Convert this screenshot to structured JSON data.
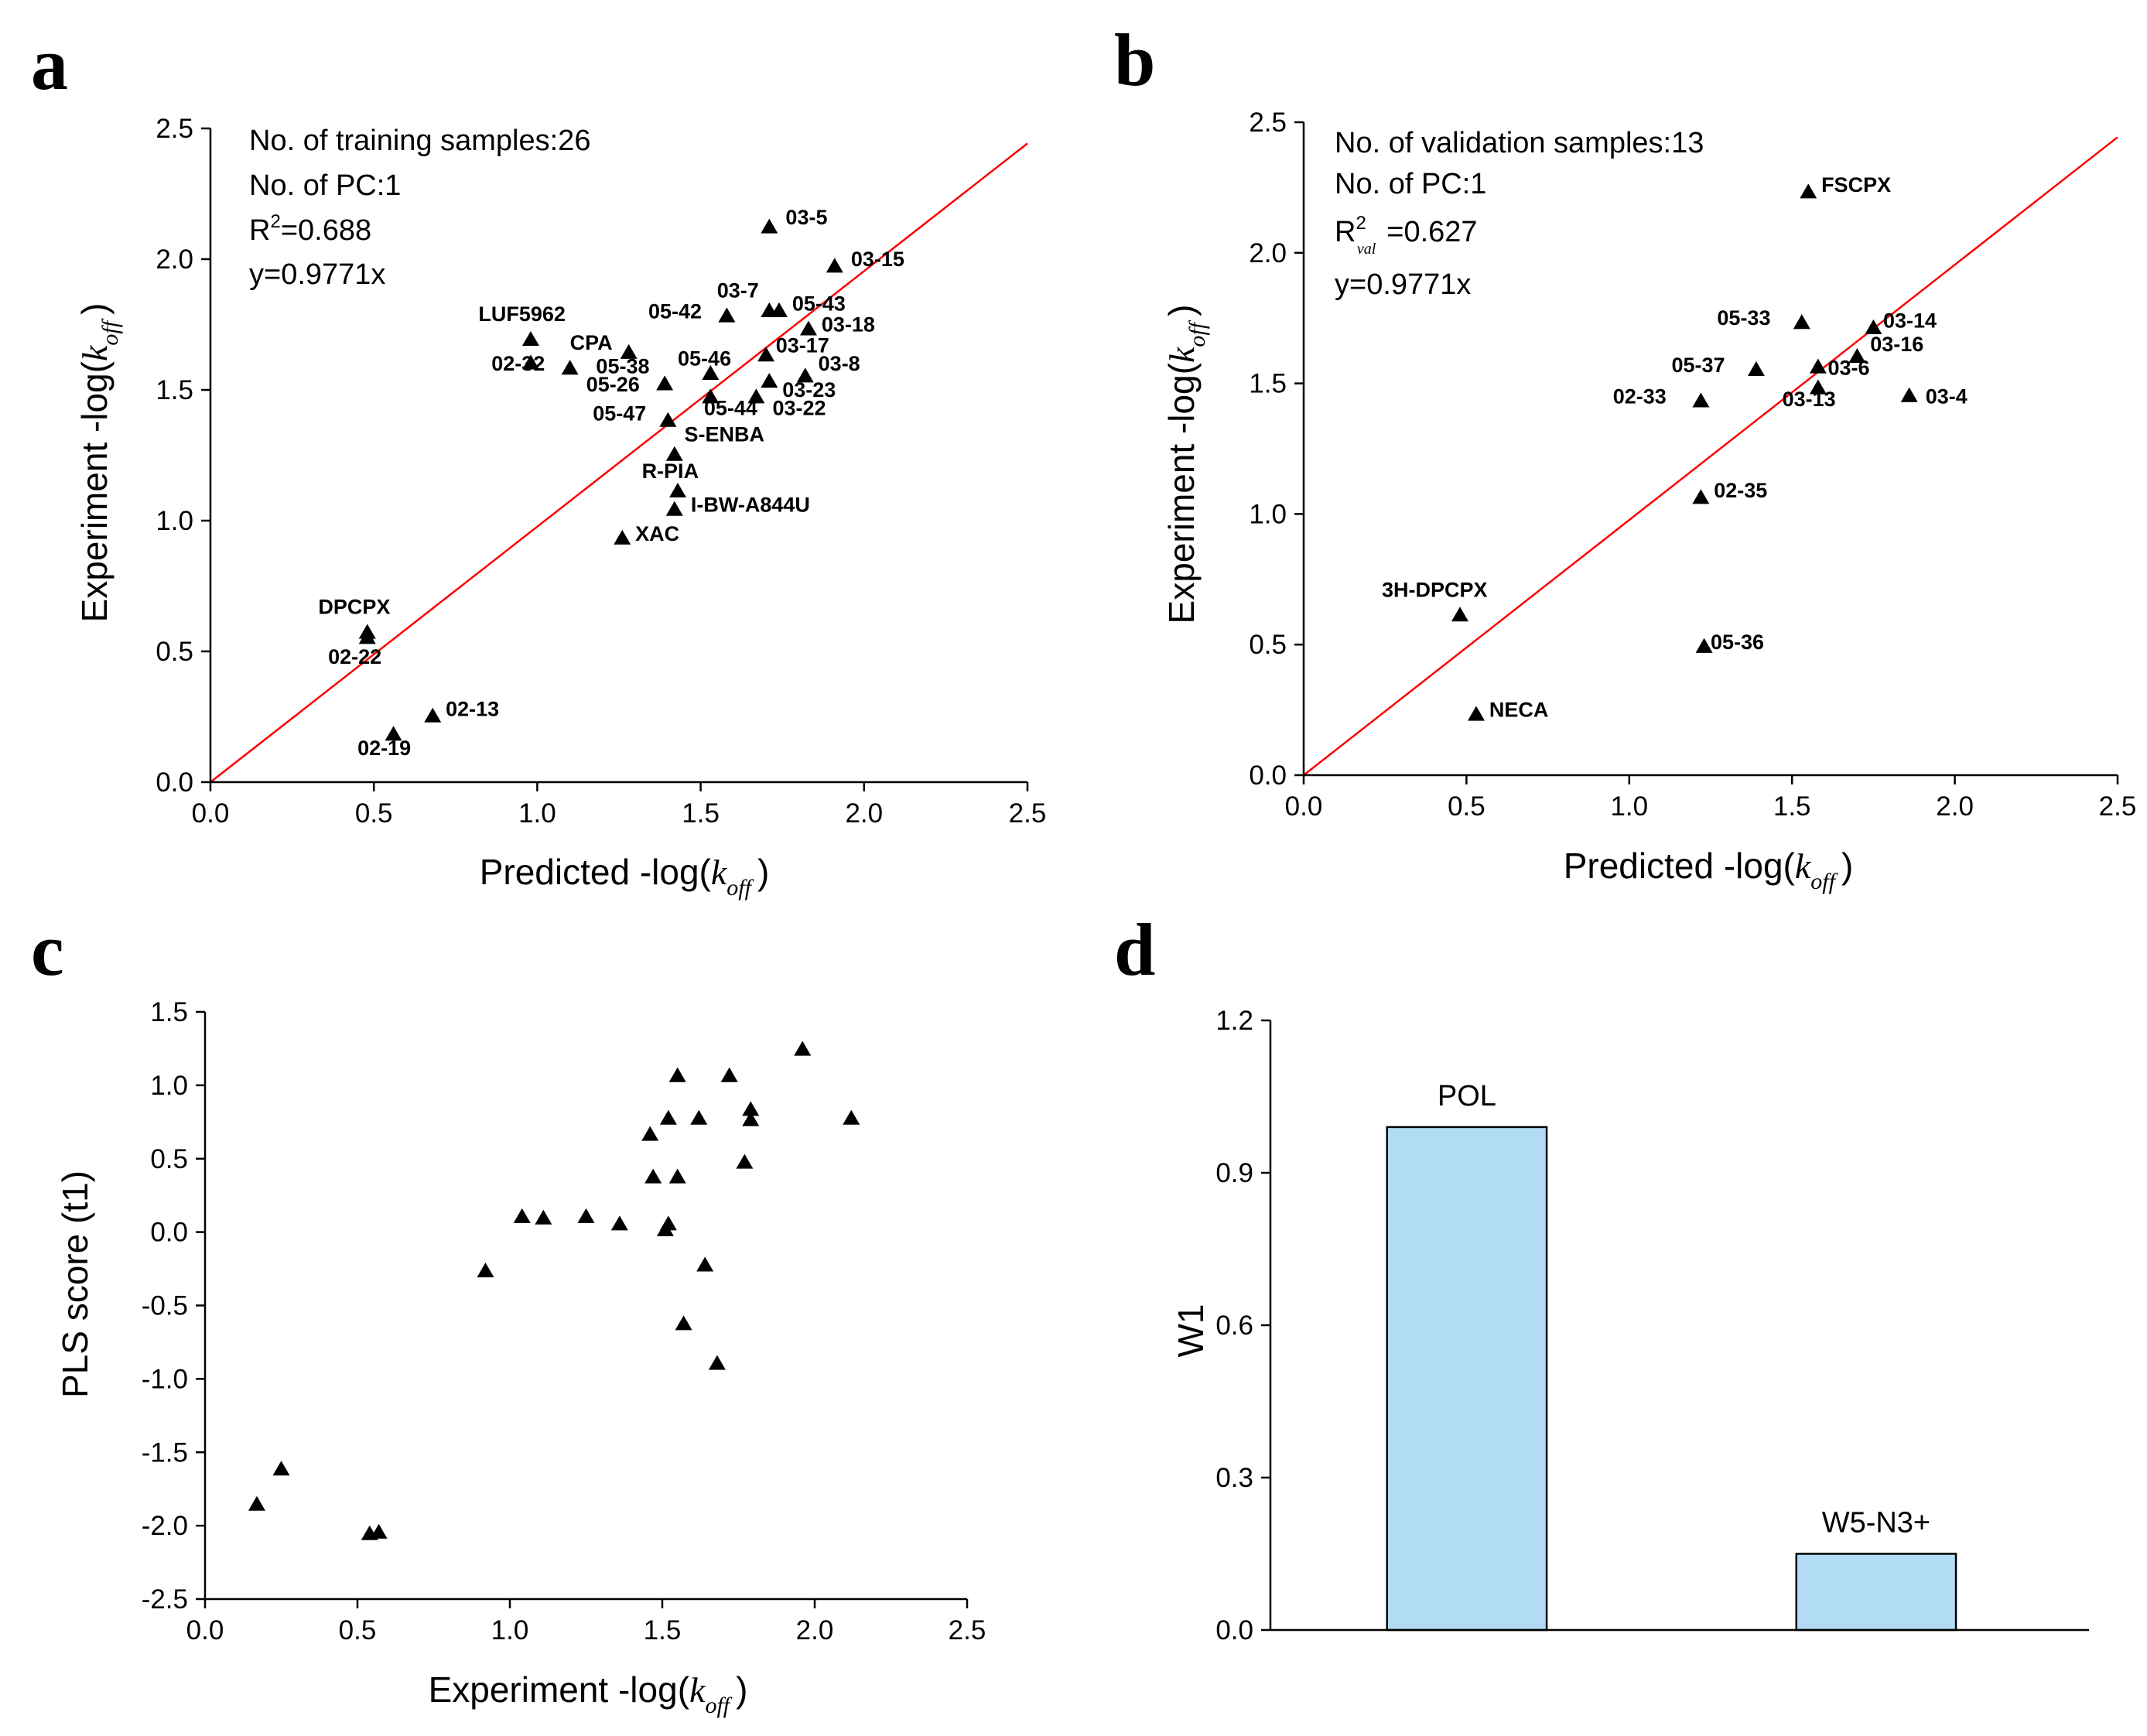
{
  "chart_data": [
    {
      "id": "a",
      "panel_letter": "a",
      "type": "scatter",
      "xlabel_main": "Predicted -log(",
      "xlabel_var": "k",
      "xlabel_sub": "off",
      "xlabel_end": ")",
      "ylabel_main": "Experiment -log(",
      "ylabel_var": "k",
      "ylabel_sub": "off",
      "ylabel_end": ")",
      "xlim": [
        0,
        2.5
      ],
      "ylim": [
        0,
        2.5
      ],
      "xticks": [
        "0.0",
        "0.5",
        "1.0",
        "1.5",
        "2.0",
        "2.5"
      ],
      "yticks": [
        "0.0",
        "0.5",
        "1.0",
        "1.5",
        "2.0",
        "2.5"
      ],
      "fit_line": {
        "slope": 0.9771
      },
      "annotation": {
        "line1": "No. of training samples:26",
        "line2": "No. of PC:1",
        "r2_R": "R",
        "r2_sup": "2",
        "r2_sub": "",
        "r2_value": "=0.688",
        "line4": "y=0.9771x"
      },
      "points": [
        {
          "label": "03-5",
          "x": 1.71,
          "y": 2.12,
          "lx": 0.05,
          "ly": 0.04
        },
        {
          "label": "03-15",
          "x": 1.91,
          "y": 1.97,
          "lx": 0.05,
          "ly": 0.03
        },
        {
          "label": "03-7",
          "x": 1.71,
          "y": 1.8,
          "lx": -0.16,
          "ly": 0.08
        },
        {
          "label": "05-43",
          "x": 1.74,
          "y": 1.8,
          "lx": 0.04,
          "ly": 0.03
        },
        {
          "label": "05-42",
          "x": 1.58,
          "y": 1.78,
          "lx": -0.24,
          "ly": 0.02
        },
        {
          "label": "03-18",
          "x": 1.83,
          "y": 1.73,
          "lx": 0.04,
          "ly": 0.02
        },
        {
          "label": "LUF5962",
          "x": 0.98,
          "y": 1.69,
          "lx": -0.16,
          "ly": 0.1
        },
        {
          "label": "CPA",
          "x": 1.1,
          "y": 1.58,
          "lx": 0.0,
          "ly": 0.1
        },
        {
          "label": "02-32",
          "x": 0.98,
          "y": 1.6,
          "lx": -0.12,
          "ly": 0.0
        },
        {
          "label": "05-46",
          "x": 1.53,
          "y": 1.56,
          "lx": -0.1,
          "ly": 0.06
        },
        {
          "label": "03-17",
          "x": 1.7,
          "y": 1.63,
          "lx": 0.03,
          "ly": 0.04
        },
        {
          "label": "05-38",
          "x": 1.28,
          "y": 1.64,
          "lx": -0.1,
          "ly": -0.05
        },
        {
          "label": "03-8",
          "x": 1.82,
          "y": 1.55,
          "lx": 0.04,
          "ly": 0.05
        },
        {
          "label": "03-23",
          "x": 1.71,
          "y": 1.53,
          "lx": 0.04,
          "ly": -0.03
        },
        {
          "label": "05-26",
          "x": 1.39,
          "y": 1.52,
          "lx": -0.24,
          "ly": 0.0
        },
        {
          "label": "05-44",
          "x": 1.53,
          "y": 1.47,
          "lx": -0.02,
          "ly": -0.04
        },
        {
          "label": "03-22",
          "x": 1.67,
          "y": 1.47,
          "lx": 0.05,
          "ly": -0.04
        },
        {
          "label": "05-47",
          "x": 1.4,
          "y": 1.38,
          "lx": -0.23,
          "ly": 0.03
        },
        {
          "label": "S-ENBA",
          "x": 1.42,
          "y": 1.25,
          "lx": 0.03,
          "ly": 0.08
        },
        {
          "label": "R-PIA",
          "x": 1.43,
          "y": 1.11,
          "lx": -0.11,
          "ly": 0.08
        },
        {
          "label": "I-BW-A844U",
          "x": 1.42,
          "y": 1.04,
          "lx": 0.05,
          "ly": 0.02
        },
        {
          "label": "XAC",
          "x": 1.26,
          "y": 0.93,
          "lx": 0.04,
          "ly": 0.02
        },
        {
          "label": "DPCPX",
          "x": 0.48,
          "y": 0.57,
          "lx": -0.15,
          "ly": 0.1
        },
        {
          "label": "02-22",
          "x": 0.48,
          "y": 0.55,
          "lx": -0.12,
          "ly": -0.07
        },
        {
          "label": "02-13",
          "x": 0.68,
          "y": 0.25,
          "lx": 0.04,
          "ly": 0.03
        },
        {
          "label": "02-19",
          "x": 0.56,
          "y": 0.18,
          "lx": -0.11,
          "ly": -0.05
        }
      ]
    },
    {
      "id": "b",
      "panel_letter": "b",
      "type": "scatter",
      "xlabel_main": "Predicted -log(",
      "xlabel_var": "k",
      "xlabel_sub": "off",
      "xlabel_end": ")",
      "ylabel_main": "Experiment -log(",
      "ylabel_var": "k",
      "ylabel_sub": "off",
      "ylabel_end": ")",
      "xlim": [
        0,
        2.5
      ],
      "ylim": [
        0,
        2.5
      ],
      "xticks": [
        "0.0",
        "0.5",
        "1.0",
        "1.5",
        "2.0",
        "2.5"
      ],
      "yticks": [
        "0.0",
        "0.5",
        "1.0",
        "1.5",
        "2.0",
        "2.5"
      ],
      "fit_line": {
        "slope": 0.9771
      },
      "annotation": {
        "line1": "No. of validation samples:13",
        "line2": "No. of PC:1",
        "r2_R": "R",
        "r2_sup": "2",
        "r2_sub": "val",
        "r2_value": "=0.627",
        "line4": "y=0.9771x"
      },
      "points": [
        {
          "label": "FSCPX",
          "x": 1.55,
          "y": 2.23,
          "lx": 0.04,
          "ly": 0.03
        },
        {
          "label": "05-33",
          "x": 1.53,
          "y": 1.73,
          "lx": -0.26,
          "ly": 0.02
        },
        {
          "label": "03-14",
          "x": 1.75,
          "y": 1.71,
          "lx": 0.03,
          "ly": 0.03
        },
        {
          "label": "03-16",
          "x": 1.7,
          "y": 1.6,
          "lx": 0.04,
          "ly": 0.05
        },
        {
          "label": "05-37",
          "x": 1.39,
          "y": 1.55,
          "lx": -0.26,
          "ly": 0.02
        },
        {
          "label": "03-6",
          "x": 1.58,
          "y": 1.56,
          "lx": 0.03,
          "ly": 0.0
        },
        {
          "label": "03-13",
          "x": 1.58,
          "y": 1.48,
          "lx": -0.11,
          "ly": -0.04
        },
        {
          "label": "03-4",
          "x": 1.86,
          "y": 1.45,
          "lx": 0.05,
          "ly": 0.0
        },
        {
          "label": "02-33",
          "x": 1.22,
          "y": 1.43,
          "lx": -0.27,
          "ly": 0.02
        },
        {
          "label": "02-35",
          "x": 1.22,
          "y": 1.06,
          "lx": 0.04,
          "ly": 0.03
        },
        {
          "label": "3H-DPCPX",
          "x": 0.48,
          "y": 0.61,
          "lx": -0.24,
          "ly": 0.1
        },
        {
          "label": "05-36",
          "x": 1.23,
          "y": 0.49,
          "lx": 0.02,
          "ly": 0.02
        },
        {
          "label": "NECA",
          "x": 0.53,
          "y": 0.23,
          "lx": 0.04,
          "ly": 0.02
        }
      ]
    },
    {
      "id": "c",
      "panel_letter": "c",
      "type": "scatter",
      "xlabel_main": "Experiment -log(",
      "xlabel_var": "k",
      "xlabel_sub": "off",
      "xlabel_end": ")",
      "ylabel": "PLS score (t1)",
      "xlim": [
        0,
        2.5
      ],
      "ylim": [
        -2.5,
        1.5
      ],
      "xticks": [
        "0.0",
        "0.5",
        "1.0",
        "1.5",
        "2.0",
        "2.5"
      ],
      "yticks": [
        "-2.5",
        "-2.0",
        "-1.5",
        "-1.0",
        "-0.5",
        "0.0",
        "0.5",
        "1.0",
        "1.5"
      ],
      "points": [
        {
          "x": 0.17,
          "y": -1.86
        },
        {
          "x": 0.25,
          "y": -1.62
        },
        {
          "x": 0.54,
          "y": -2.06
        },
        {
          "x": 0.57,
          "y": -2.05
        },
        {
          "x": 0.92,
          "y": -0.27
        },
        {
          "x": 1.04,
          "y": 0.1
        },
        {
          "x": 1.11,
          "y": 0.09
        },
        {
          "x": 1.25,
          "y": 0.1
        },
        {
          "x": 1.36,
          "y": 0.05
        },
        {
          "x": 1.46,
          "y": 0.66
        },
        {
          "x": 1.47,
          "y": 0.37
        },
        {
          "x": 1.51,
          "y": 0.01
        },
        {
          "x": 1.52,
          "y": 0.05
        },
        {
          "x": 1.52,
          "y": 0.77
        },
        {
          "x": 1.55,
          "y": 1.06
        },
        {
          "x": 1.55,
          "y": 0.37
        },
        {
          "x": 1.57,
          "y": -0.63
        },
        {
          "x": 1.62,
          "y": 0.77
        },
        {
          "x": 1.64,
          "y": -0.23
        },
        {
          "x": 1.68,
          "y": -0.9
        },
        {
          "x": 1.72,
          "y": 1.06
        },
        {
          "x": 1.77,
          "y": 0.47
        },
        {
          "x": 1.79,
          "y": 0.76
        },
        {
          "x": 1.79,
          "y": 0.83
        },
        {
          "x": 1.96,
          "y": 1.24
        },
        {
          "x": 2.12,
          "y": 0.77
        }
      ]
    },
    {
      "id": "d",
      "panel_letter": "d",
      "type": "bar",
      "ylabel": "W1",
      "ylim": [
        0,
        1.2
      ],
      "yticks": [
        "0.0",
        "0.3",
        "0.6",
        "0.9",
        "1.2"
      ],
      "categories": [
        "POL",
        "W5-N3+"
      ],
      "values": [
        0.99,
        0.15
      ],
      "bar_color": "#b2dcf4"
    }
  ]
}
